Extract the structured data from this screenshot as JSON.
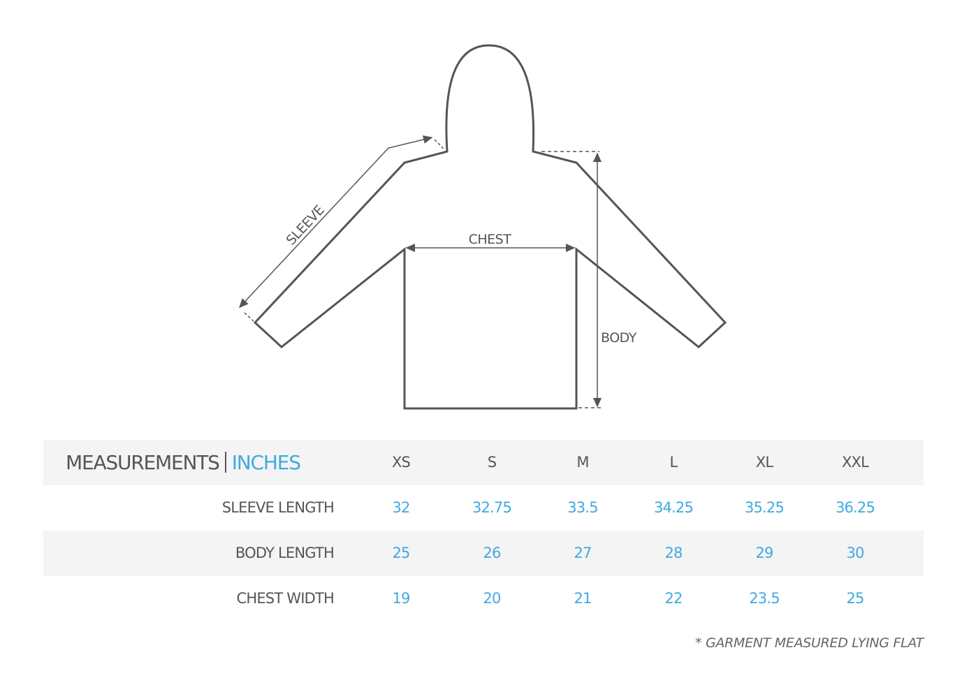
{
  "diagram": {
    "labels": {
      "sleeve": "SLEEVE",
      "chest": "CHEST",
      "body": "BODY"
    }
  },
  "table": {
    "title": "MEASUREMENTS",
    "unit": "INCHES",
    "sizes": [
      "XS",
      "S",
      "M",
      "L",
      "XL",
      "XXL"
    ],
    "rows": [
      {
        "label": "SLEEVE LENGTH",
        "values": [
          "32",
          "32.75",
          "33.5",
          "34.25",
          "35.25",
          "36.25"
        ]
      },
      {
        "label": "BODY LENGTH",
        "values": [
          "25",
          "26",
          "27",
          "28",
          "29",
          "30"
        ]
      },
      {
        "label": "CHEST WIDTH",
        "values": [
          "19",
          "20",
          "21",
          "22",
          "23.5",
          "25"
        ]
      }
    ]
  },
  "note": "* GARMENT MEASURED LYING FLAT",
  "colors": {
    "accent": "#3fa9e0",
    "text": "#555555",
    "band": "#f4f4f4"
  }
}
